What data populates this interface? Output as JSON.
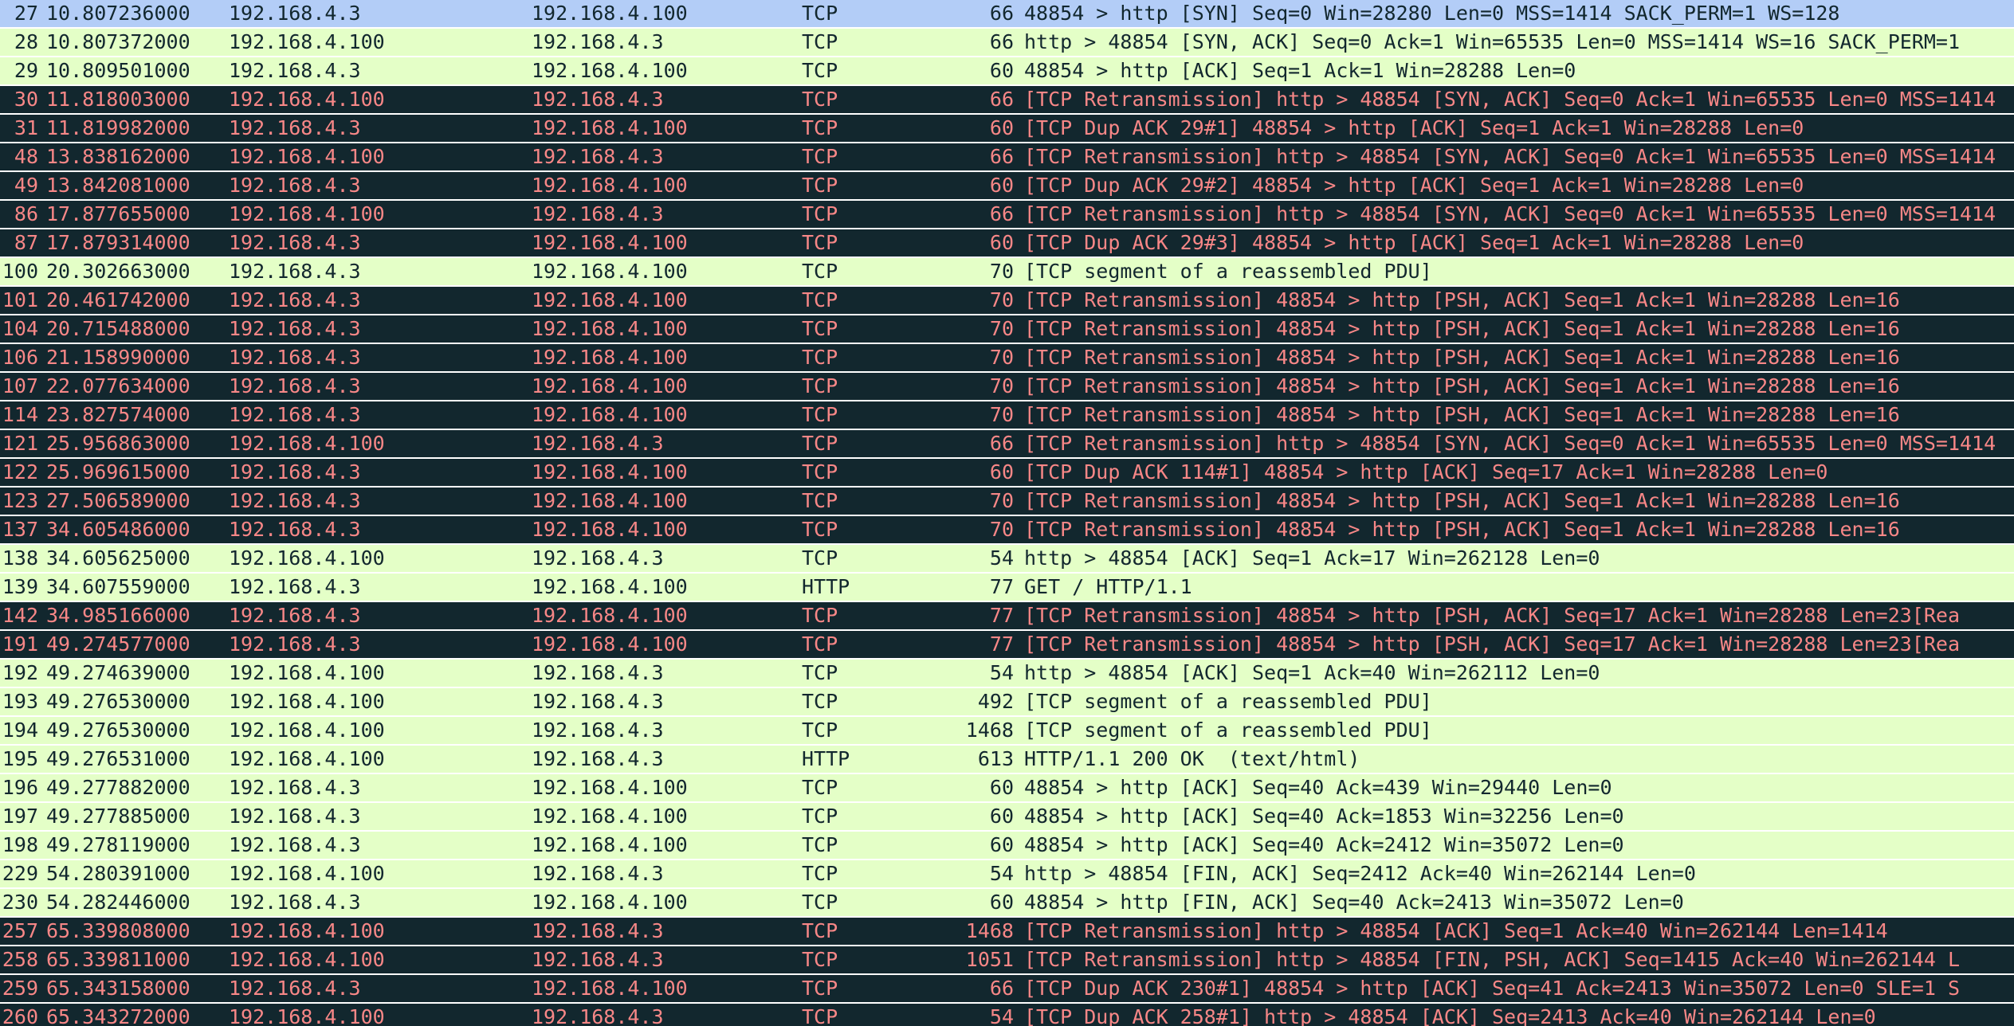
{
  "styles": {
    "selected": {
      "bg": "#b3cdf7",
      "fg": "#12272e"
    },
    "normal": {
      "bg": "#e4ffc7",
      "fg": "#12272e"
    },
    "bad": {
      "bg": "#12272e",
      "fg": "#f78787"
    }
  },
  "rows": [
    {
      "style": "selected",
      "cells": [
        "27",
        "10.807236000",
        "192.168.4.3",
        "192.168.4.100",
        "TCP",
        "66",
        "48854 > http [SYN] Seq=0 Win=28280 Len=0 MSS=1414 SACK_PERM=1 WS=128"
      ]
    },
    {
      "style": "normal",
      "cells": [
        "28",
        "10.807372000",
        "192.168.4.100",
        "192.168.4.3",
        "TCP",
        "66",
        "http > 48854 [SYN, ACK] Seq=0 Ack=1 Win=65535 Len=0 MSS=1414 WS=16 SACK_PERM=1"
      ]
    },
    {
      "style": "normal",
      "cells": [
        "29",
        "10.809501000",
        "192.168.4.3",
        "192.168.4.100",
        "TCP",
        "60",
        "48854 > http [ACK] Seq=1 Ack=1 Win=28288 Len=0"
      ]
    },
    {
      "style": "bad",
      "cells": [
        "30",
        "11.818003000",
        "192.168.4.100",
        "192.168.4.3",
        "TCP",
        "66",
        "[TCP Retransmission] http > 48854 [SYN, ACK] Seq=0 Ack=1 Win=65535 Len=0 MSS=1414"
      ]
    },
    {
      "style": "bad",
      "cells": [
        "31",
        "11.819982000",
        "192.168.4.3",
        "192.168.4.100",
        "TCP",
        "60",
        "[TCP Dup ACK 29#1] 48854 > http [ACK] Seq=1 Ack=1 Win=28288 Len=0"
      ]
    },
    {
      "style": "bad",
      "cells": [
        "48",
        "13.838162000",
        "192.168.4.100",
        "192.168.4.3",
        "TCP",
        "66",
        "[TCP Retransmission] http > 48854 [SYN, ACK] Seq=0 Ack=1 Win=65535 Len=0 MSS=1414"
      ]
    },
    {
      "style": "bad",
      "cells": [
        "49",
        "13.842081000",
        "192.168.4.3",
        "192.168.4.100",
        "TCP",
        "60",
        "[TCP Dup ACK 29#2] 48854 > http [ACK] Seq=1 Ack=1 Win=28288 Len=0"
      ]
    },
    {
      "style": "bad",
      "cells": [
        "86",
        "17.877655000",
        "192.168.4.100",
        "192.168.4.3",
        "TCP",
        "66",
        "[TCP Retransmission] http > 48854 [SYN, ACK] Seq=0 Ack=1 Win=65535 Len=0 MSS=1414"
      ]
    },
    {
      "style": "bad",
      "cells": [
        "87",
        "17.879314000",
        "192.168.4.3",
        "192.168.4.100",
        "TCP",
        "60",
        "[TCP Dup ACK 29#3] 48854 > http [ACK] Seq=1 Ack=1 Win=28288 Len=0"
      ]
    },
    {
      "style": "normal",
      "cells": [
        "100",
        "20.302663000",
        "192.168.4.3",
        "192.168.4.100",
        "TCP",
        "70",
        "[TCP segment of a reassembled PDU]"
      ]
    },
    {
      "style": "bad",
      "cells": [
        "101",
        "20.461742000",
        "192.168.4.3",
        "192.168.4.100",
        "TCP",
        "70",
        "[TCP Retransmission] 48854 > http [PSH, ACK] Seq=1 Ack=1 Win=28288 Len=16"
      ]
    },
    {
      "style": "bad",
      "cells": [
        "104",
        "20.715488000",
        "192.168.4.3",
        "192.168.4.100",
        "TCP",
        "70",
        "[TCP Retransmission] 48854 > http [PSH, ACK] Seq=1 Ack=1 Win=28288 Len=16"
      ]
    },
    {
      "style": "bad",
      "cells": [
        "106",
        "21.158990000",
        "192.168.4.3",
        "192.168.4.100",
        "TCP",
        "70",
        "[TCP Retransmission] 48854 > http [PSH, ACK] Seq=1 Ack=1 Win=28288 Len=16"
      ]
    },
    {
      "style": "bad",
      "cells": [
        "107",
        "22.077634000",
        "192.168.4.3",
        "192.168.4.100",
        "TCP",
        "70",
        "[TCP Retransmission] 48854 > http [PSH, ACK] Seq=1 Ack=1 Win=28288 Len=16"
      ]
    },
    {
      "style": "bad",
      "cells": [
        "114",
        "23.827574000",
        "192.168.4.3",
        "192.168.4.100",
        "TCP",
        "70",
        "[TCP Retransmission] 48854 > http [PSH, ACK] Seq=1 Ack=1 Win=28288 Len=16"
      ]
    },
    {
      "style": "bad",
      "cells": [
        "121",
        "25.956863000",
        "192.168.4.100",
        "192.168.4.3",
        "TCP",
        "66",
        "[TCP Retransmission] http > 48854 [SYN, ACK] Seq=0 Ack=1 Win=65535 Len=0 MSS=1414"
      ]
    },
    {
      "style": "bad",
      "cells": [
        "122",
        "25.969615000",
        "192.168.4.3",
        "192.168.4.100",
        "TCP",
        "60",
        "[TCP Dup ACK 114#1] 48854 > http [ACK] Seq=17 Ack=1 Win=28288 Len=0"
      ]
    },
    {
      "style": "bad",
      "cells": [
        "123",
        "27.506589000",
        "192.168.4.3",
        "192.168.4.100",
        "TCP",
        "70",
        "[TCP Retransmission] 48854 > http [PSH, ACK] Seq=1 Ack=1 Win=28288 Len=16"
      ]
    },
    {
      "style": "bad",
      "cells": [
        "137",
        "34.605486000",
        "192.168.4.3",
        "192.168.4.100",
        "TCP",
        "70",
        "[TCP Retransmission] 48854 > http [PSH, ACK] Seq=1 Ack=1 Win=28288 Len=16"
      ]
    },
    {
      "style": "normal",
      "cells": [
        "138",
        "34.605625000",
        "192.168.4.100",
        "192.168.4.3",
        "TCP",
        "54",
        "http > 48854 [ACK] Seq=1 Ack=17 Win=262128 Len=0"
      ]
    },
    {
      "style": "normal",
      "cells": [
        "139",
        "34.607559000",
        "192.168.4.3",
        "192.168.4.100",
        "HTTP",
        "77",
        "GET / HTTP/1.1"
      ]
    },
    {
      "style": "bad",
      "cells": [
        "142",
        "34.985166000",
        "192.168.4.3",
        "192.168.4.100",
        "TCP",
        "77",
        "[TCP Retransmission] 48854 > http [PSH, ACK] Seq=17 Ack=1 Win=28288 Len=23[Rea"
      ]
    },
    {
      "style": "bad",
      "cells": [
        "191",
        "49.274577000",
        "192.168.4.3",
        "192.168.4.100",
        "TCP",
        "77",
        "[TCP Retransmission] 48854 > http [PSH, ACK] Seq=17 Ack=1 Win=28288 Len=23[Rea"
      ]
    },
    {
      "style": "normal",
      "cells": [
        "192",
        "49.274639000",
        "192.168.4.100",
        "192.168.4.3",
        "TCP",
        "54",
        "http > 48854 [ACK] Seq=1 Ack=40 Win=262112 Len=0"
      ]
    },
    {
      "style": "normal",
      "cells": [
        "193",
        "49.276530000",
        "192.168.4.100",
        "192.168.4.3",
        "TCP",
        "492",
        "[TCP segment of a reassembled PDU]"
      ]
    },
    {
      "style": "normal",
      "cells": [
        "194",
        "49.276530000",
        "192.168.4.100",
        "192.168.4.3",
        "TCP",
        "1468",
        "[TCP segment of a reassembled PDU]"
      ]
    },
    {
      "style": "normal",
      "cells": [
        "195",
        "49.276531000",
        "192.168.4.100",
        "192.168.4.3",
        "HTTP",
        "613",
        "HTTP/1.1 200 OK  (text/html)"
      ]
    },
    {
      "style": "normal",
      "cells": [
        "196",
        "49.277882000",
        "192.168.4.3",
        "192.168.4.100",
        "TCP",
        "60",
        "48854 > http [ACK] Seq=40 Ack=439 Win=29440 Len=0"
      ]
    },
    {
      "style": "normal",
      "cells": [
        "197",
        "49.277885000",
        "192.168.4.3",
        "192.168.4.100",
        "TCP",
        "60",
        "48854 > http [ACK] Seq=40 Ack=1853 Win=32256 Len=0"
      ]
    },
    {
      "style": "normal",
      "cells": [
        "198",
        "49.278119000",
        "192.168.4.3",
        "192.168.4.100",
        "TCP",
        "60",
        "48854 > http [ACK] Seq=40 Ack=2412 Win=35072 Len=0"
      ]
    },
    {
      "style": "normal",
      "cells": [
        "229",
        "54.280391000",
        "192.168.4.100",
        "192.168.4.3",
        "TCP",
        "54",
        "http > 48854 [FIN, ACK] Seq=2412 Ack=40 Win=262144 Len=0"
      ]
    },
    {
      "style": "normal",
      "cells": [
        "230",
        "54.282446000",
        "192.168.4.3",
        "192.168.4.100",
        "TCP",
        "60",
        "48854 > http [FIN, ACK] Seq=40 Ack=2413 Win=35072 Len=0"
      ]
    },
    {
      "style": "bad",
      "cells": [
        "257",
        "65.339808000",
        "192.168.4.100",
        "192.168.4.3",
        "TCP",
        "1468",
        "[TCP Retransmission] http > 48854 [ACK] Seq=1 Ack=40 Win=262144 Len=1414"
      ]
    },
    {
      "style": "bad",
      "cells": [
        "258",
        "65.339811000",
        "192.168.4.100",
        "192.168.4.3",
        "TCP",
        "1051",
        "[TCP Retransmission] http > 48854 [FIN, PSH, ACK] Seq=1415 Ack=40 Win=262144 L"
      ]
    },
    {
      "style": "bad",
      "cells": [
        "259",
        "65.343158000",
        "192.168.4.3",
        "192.168.4.100",
        "TCP",
        "66",
        "[TCP Dup ACK 230#1] 48854 > http [ACK] Seq=41 Ack=2413 Win=35072 Len=0 SLE=1 S"
      ]
    },
    {
      "style": "bad",
      "cells": [
        "260",
        "65.343272000",
        "192.168.4.100",
        "192.168.4.3",
        "TCP",
        "54",
        "[TCP Dup ACK 258#1] http > 48854 [ACK] Seq=2413 Ack=40 Win=262144 Len=0"
      ]
    }
  ]
}
